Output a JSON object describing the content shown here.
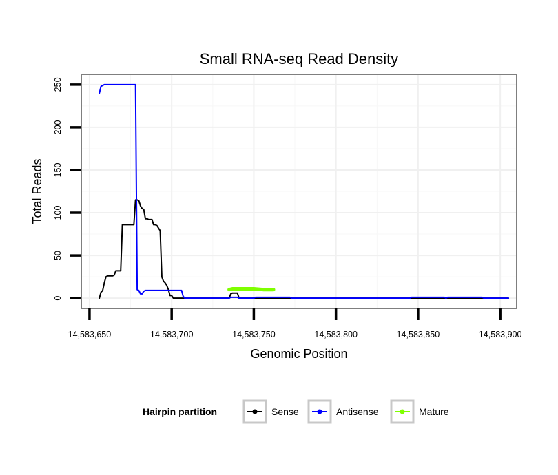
{
  "chart_data": {
    "type": "line",
    "title": "Small RNA-seq Read Density",
    "xlabel": "Genomic Position",
    "ylabel": "Total Reads",
    "xlim": [
      14583645,
      14583910
    ],
    "ylim": [
      -12,
      262
    ],
    "x_ticks": [
      14583650,
      14583700,
      14583750,
      14583800,
      14583850,
      14583900
    ],
    "x_tick_labels": [
      "14,583,650",
      "14,583,700",
      "14,583,750",
      "14,583,800",
      "14,583,850",
      "14,583,900"
    ],
    "y_ticks": [
      0,
      50,
      100,
      150,
      200,
      250
    ],
    "y_tick_labels": [
      "0",
      "50",
      "100",
      "150",
      "200",
      "250"
    ],
    "grid": true,
    "legend": {
      "title": "Hairpin partition",
      "position": "bottom",
      "entries": [
        "Sense",
        "Antisense",
        "Mature"
      ]
    },
    "series": [
      {
        "name": "Sense",
        "color": "#000000",
        "points": [
          [
            14583656,
            0
          ],
          [
            14583657,
            7
          ],
          [
            14583658,
            9
          ],
          [
            14583659,
            18
          ],
          [
            14583660,
            25
          ],
          [
            14583661,
            26
          ],
          [
            14583662,
            26
          ],
          [
            14583663,
            26
          ],
          [
            14583664,
            26
          ],
          [
            14583665,
            27
          ],
          [
            14583666,
            32
          ],
          [
            14583667,
            32
          ],
          [
            14583668,
            32
          ],
          [
            14583669,
            32
          ],
          [
            14583670,
            86
          ],
          [
            14583671,
            86
          ],
          [
            14583672,
            86
          ],
          [
            14583673,
            86
          ],
          [
            14583674,
            86
          ],
          [
            14583675,
            86
          ],
          [
            14583676,
            86
          ],
          [
            14583677,
            86
          ],
          [
            14583678,
            115
          ],
          [
            14583679,
            115
          ],
          [
            14583680,
            114
          ],
          [
            14583681,
            108
          ],
          [
            14583682,
            105
          ],
          [
            14583683,
            104
          ],
          [
            14583684,
            93
          ],
          [
            14583685,
            93
          ],
          [
            14583686,
            92
          ],
          [
            14583687,
            92
          ],
          [
            14583688,
            92
          ],
          [
            14583689,
            86
          ],
          [
            14583690,
            86
          ],
          [
            14583691,
            85
          ],
          [
            14583692,
            82
          ],
          [
            14583693,
            79
          ],
          [
            14583694,
            25
          ],
          [
            14583695,
            20
          ],
          [
            14583696,
            18
          ],
          [
            14583697,
            15
          ],
          [
            14583698,
            10
          ],
          [
            14583699,
            3
          ],
          [
            14583700,
            3
          ],
          [
            14583701,
            0
          ],
          [
            14583735,
            0
          ],
          [
            14583736,
            5
          ],
          [
            14583737,
            6
          ],
          [
            14583738,
            6
          ],
          [
            14583740,
            6
          ],
          [
            14583741,
            0
          ],
          [
            14583905,
            0
          ]
        ]
      },
      {
        "name": "Antisense",
        "color": "#0000ff",
        "points": [
          [
            14583656,
            240
          ],
          [
            14583657,
            248
          ],
          [
            14583659,
            250
          ],
          [
            14583660,
            250
          ],
          [
            14583678,
            250
          ],
          [
            14583679,
            10
          ],
          [
            14583680,
            9
          ],
          [
            14583681,
            5
          ],
          [
            14583682,
            5
          ],
          [
            14583683,
            8
          ],
          [
            14583684,
            9
          ],
          [
            14583686,
            9
          ],
          [
            14583706,
            9
          ],
          [
            14583707,
            2
          ],
          [
            14583708,
            0
          ],
          [
            14583735,
            0
          ],
          [
            14583736,
            1
          ],
          [
            14583740,
            1
          ],
          [
            14583741,
            0
          ],
          [
            14583750,
            0
          ],
          [
            14583751,
            1
          ],
          [
            14583772,
            1
          ],
          [
            14583773,
            0
          ],
          [
            14583845,
            0
          ],
          [
            14583846,
            1
          ],
          [
            14583866,
            1
          ],
          [
            14583867,
            0
          ],
          [
            14583868,
            1
          ],
          [
            14583889,
            1
          ],
          [
            14583890,
            0
          ],
          [
            14583905,
            0
          ]
        ]
      },
      {
        "name": "Mature",
        "color": "#7fff00",
        "points": [
          [
            14583735,
            10
          ],
          [
            14583737,
            11
          ],
          [
            14583744,
            11
          ],
          [
            14583750,
            11
          ],
          [
            14583756,
            10
          ],
          [
            14583762,
            10
          ]
        ]
      }
    ]
  }
}
